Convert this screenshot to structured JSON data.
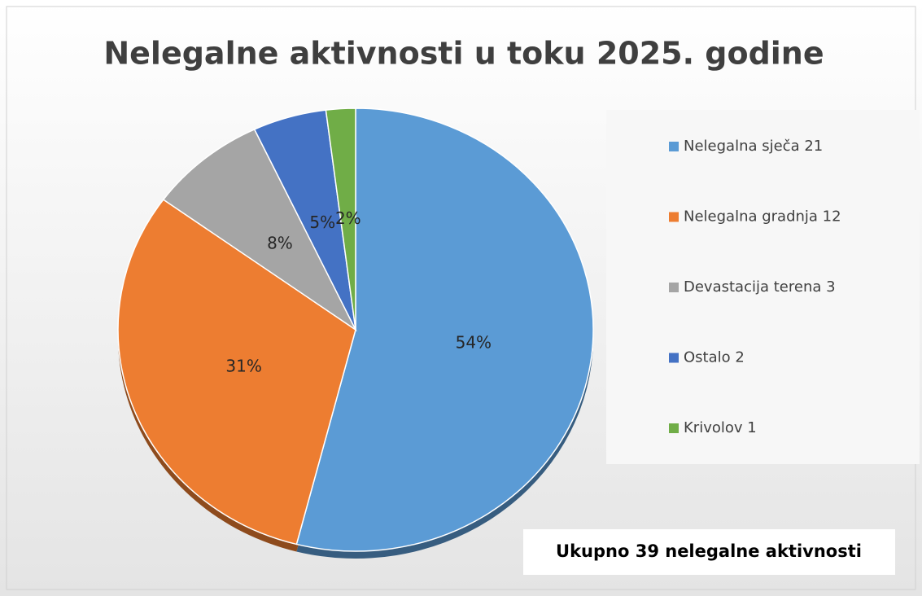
{
  "chart_data": {
    "type": "pie",
    "title": "Nelegalne aktivnosti u toku 2025. godine",
    "categories": [
      "Nelegalna sječa 21",
      "Nelegalna gradnja 12",
      "Devastacija terena 3",
      "Ostalo 2",
      "Krivolov 1"
    ],
    "values": [
      54,
      31,
      8,
      5,
      2
    ],
    "value_labels": [
      "54%",
      "31%",
      "8%",
      "5%",
      "2%"
    ],
    "colors": [
      "#5b9bd5",
      "#ed7d31",
      "#a5a5a5",
      "#4472c4",
      "#70ad47"
    ],
    "legend": "right",
    "annotation": "Ukupno 39 nelegalne aktivnosti"
  }
}
